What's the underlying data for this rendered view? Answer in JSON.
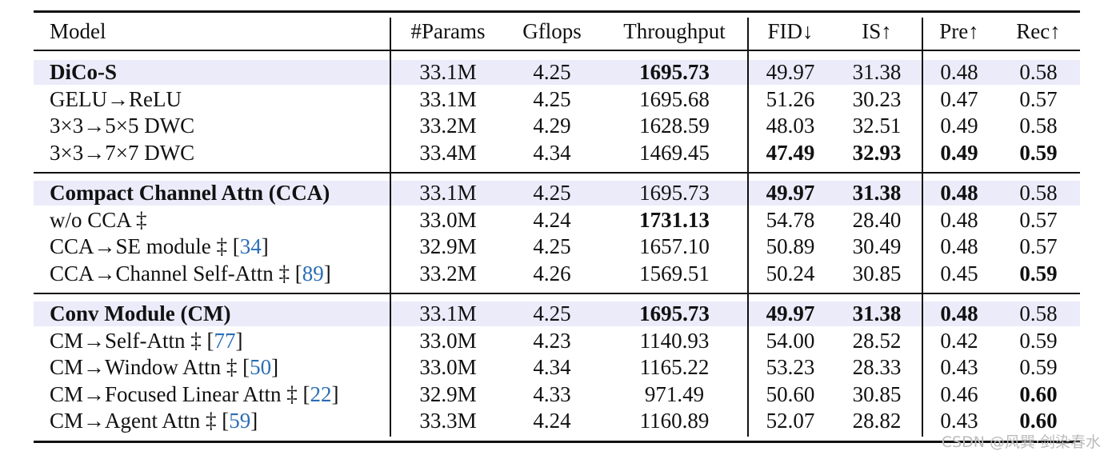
{
  "table": {
    "header": [
      "Model",
      "#Params",
      "Gflops",
      "Throughput",
      "FID↓",
      "IS↑",
      "Pre↑",
      "Rec↑"
    ],
    "groups": [
      {
        "rows": [
          {
            "model": {
              "text": "DiCo-S"
            },
            "cells": [
              "33.1M",
              "4.25",
              "1695.73",
              "49.97",
              "31.38",
              "0.48",
              "0.58"
            ]
          },
          {
            "model": {
              "text": "GELU→ReLU"
            },
            "cells": [
              "33.1M",
              "4.25",
              "1695.68",
              "51.26",
              "30.23",
              "0.47",
              "0.57"
            ]
          },
          {
            "model": {
              "text": "3×3→5×5 DWC"
            },
            "cells": [
              "33.2M",
              "4.29",
              "1628.59",
              "48.03",
              "32.51",
              "0.49",
              "0.58"
            ]
          },
          {
            "model": {
              "text": "3×3→7×7 DWC"
            },
            "cells": [
              "33.4M",
              "4.34",
              "1469.45",
              "47.49",
              "32.93",
              "0.49",
              "0.59"
            ]
          }
        ]
      },
      {
        "rows": [
          {
            "model": {
              "text": "Compact Channel Attn (CCA)"
            },
            "cells": [
              "33.1M",
              "4.25",
              "1695.73",
              "49.97",
              "31.38",
              "0.48",
              "0.58"
            ]
          },
          {
            "model": {
              "text": "w/o CCA ‡"
            },
            "cells": [
              "33.0M",
              "4.24",
              "1731.13",
              "54.78",
              "28.40",
              "0.48",
              "0.57"
            ]
          },
          {
            "model": {
              "text": "CCA→SE module ‡ [",
              "ref": "34",
              "end": "]"
            },
            "cells": [
              "32.9M",
              "4.25",
              "1657.10",
              "50.89",
              "30.49",
              "0.48",
              "0.57"
            ]
          },
          {
            "model": {
              "text": "CCA→Channel Self-Attn ‡ [",
              "ref": "89",
              "end": "]"
            },
            "cells": [
              "33.2M",
              "4.26",
              "1569.51",
              "50.24",
              "30.85",
              "0.45",
              "0.59"
            ]
          }
        ]
      },
      {
        "rows": [
          {
            "model": {
              "text": "Conv Module (CM)"
            },
            "cells": [
              "33.1M",
              "4.25",
              "1695.73",
              "49.97",
              "31.38",
              "0.48",
              "0.58"
            ]
          },
          {
            "model": {
              "text": "CM→Self-Attn ‡ [",
              "ref": "77",
              "end": "]"
            },
            "cells": [
              "33.0M",
              "4.23",
              "1140.93",
              "54.00",
              "28.52",
              "0.42",
              "0.59"
            ]
          },
          {
            "model": {
              "text": "CM→Window Attn ‡ [",
              "ref": "50",
              "end": "]"
            },
            "cells": [
              "33.0M",
              "4.34",
              "1165.22",
              "53.23",
              "28.33",
              "0.43",
              "0.59"
            ]
          },
          {
            "model": {
              "text": "CM→Focused Linear Attn ‡ [",
              "ref": "22",
              "end": "]"
            },
            "cells": [
              "32.9M",
              "4.33",
              "971.49",
              "50.60",
              "30.85",
              "0.46",
              "0.60"
            ]
          },
          {
            "model": {
              "text": "CM→Agent Attn ‡ [",
              "ref": "59",
              "end": "]"
            },
            "cells": [
              "33.3M",
              "4.24",
              "1160.89",
              "52.07",
              "28.82",
              "0.43",
              "0.60"
            ]
          }
        ]
      }
    ]
  },
  "watermark": "CSDN @风巽·剑染春水"
}
